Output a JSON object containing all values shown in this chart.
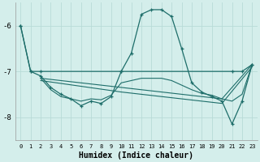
{
  "xlabel": "Humidex (Indice chaleur)",
  "bg_color": "#d4eeeb",
  "grid_color": "#b8dbd7",
  "line_color": "#1e6e6a",
  "xlim": [
    -0.5,
    23.5
  ],
  "ylim": [
    -8.5,
    -5.5
  ],
  "yticks": [
    -8,
    -7,
    -6
  ],
  "xticks": [
    0,
    1,
    2,
    3,
    4,
    5,
    6,
    7,
    8,
    9,
    10,
    11,
    12,
    13,
    14,
    15,
    16,
    17,
    18,
    19,
    20,
    21,
    22,
    23
  ],
  "line1_x": [
    0,
    1,
    2,
    10,
    21,
    22,
    23
  ],
  "line1_y": [
    -6.0,
    -7.0,
    -7.0,
    -7.0,
    -7.0,
    -7.0,
    -6.85
  ],
  "line2_x": [
    0,
    1,
    2,
    3,
    4,
    5,
    6,
    7,
    8,
    9,
    10,
    11,
    12,
    13,
    14,
    15,
    16,
    17,
    18,
    19,
    20,
    21,
    22,
    23
  ],
  "line2_y": [
    -6.0,
    -7.0,
    -7.1,
    -7.35,
    -7.5,
    -7.6,
    -7.75,
    -7.65,
    -7.7,
    -7.55,
    -7.0,
    -6.6,
    -5.75,
    -5.65,
    -5.65,
    -5.8,
    -6.5,
    -7.25,
    -7.45,
    -7.55,
    -7.65,
    -8.15,
    -7.65,
    -6.85
  ],
  "line3_x": [
    2,
    3,
    4,
    5,
    6,
    7,
    8,
    9,
    10,
    11,
    12,
    13,
    14,
    15,
    16,
    17,
    18,
    19,
    20,
    21,
    22,
    23
  ],
  "line3_y": [
    -7.15,
    -7.4,
    -7.55,
    -7.6,
    -7.65,
    -7.6,
    -7.62,
    -7.52,
    -7.25,
    -7.2,
    -7.15,
    -7.15,
    -7.15,
    -7.2,
    -7.3,
    -7.4,
    -7.48,
    -7.52,
    -7.6,
    -7.65,
    -7.5,
    -6.85
  ],
  "line4_x": [
    2,
    10,
    20,
    23
  ],
  "line4_y": [
    -7.15,
    -7.35,
    -7.6,
    -6.85
  ],
  "line5_x": [
    2,
    10,
    20,
    23
  ],
  "line5_y": [
    -7.2,
    -7.45,
    -7.7,
    -6.9
  ]
}
